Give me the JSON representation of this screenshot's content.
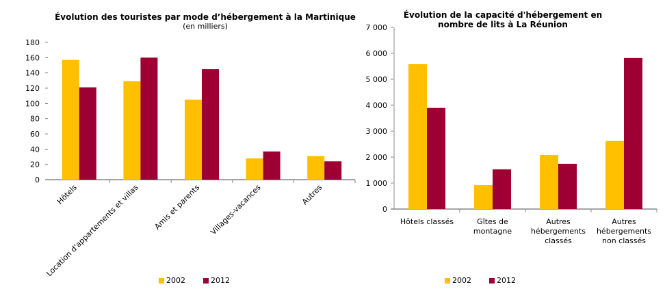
{
  "colors": {
    "2002": "#FFC000",
    "2012": "#9E0033",
    "axis": "#868686"
  },
  "chart_data": [
    {
      "type": "bar",
      "title": "Évolution des touristes par mode d’hébergement à la Martinique",
      "subtitle": "(en milliers)",
      "categories": [
        "Hôtels",
        "Location d'appartements et villas",
        "Amis et parents",
        "Villages-vacances",
        "Autres"
      ],
      "series": [
        {
          "name": "2002",
          "values": [
            157,
            129,
            105,
            28,
            31
          ]
        },
        {
          "name": "2012",
          "values": [
            121,
            160,
            145,
            37,
            24
          ]
        }
      ],
      "yticks": [
        "0",
        "20",
        "40",
        "60",
        "80",
        "100",
        "120",
        "140",
        "160",
        "180"
      ],
      "ylim": [
        0,
        180
      ],
      "xlabel": "",
      "ylabel": "",
      "legend": "bottom",
      "grid": false
    },
    {
      "type": "bar",
      "title": "Évolution de la capacité d'hébergement en nombre de lits à La Réunion",
      "categories": [
        "Hôtels classés",
        "Gîtes de montagne",
        "Autres hébergements classés",
        "Autres hébergements non classés"
      ],
      "series": [
        {
          "name": "2002",
          "values": [
            5580,
            920,
            2080,
            2630
          ]
        },
        {
          "name": "2012",
          "values": [
            3900,
            1530,
            1740,
            5820
          ]
        }
      ],
      "yticks": [
        "0",
        "1 000",
        "2 000",
        "3 000",
        "4 000",
        "5 000",
        "6 000",
        "7 000"
      ],
      "ylim": [
        0,
        7000
      ],
      "xlabel": "",
      "ylabel": "",
      "legend": "bottom",
      "grid": false
    }
  ]
}
